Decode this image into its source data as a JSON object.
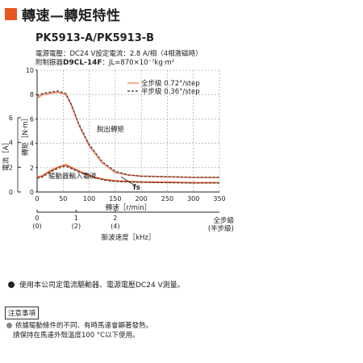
{
  "title": "轉速—轉矩特性",
  "colors": {
    "accent": "#e8561e",
    "curve_full": "#f08060",
    "curve_half": "#333333",
    "current": "#e8561e"
  },
  "model": "PK5913-A/PK5913-B",
  "spec_line1": "電源電壓：DC24 V設定電流：2.8 A/相（4相激磁時）",
  "spec_line2_prefix": "附制振器",
  "spec_line2_bold": "D9CL-14F",
  "spec_line2_suffix": "：JL=870×10⁻⁷kg·m²",
  "chart_data": {
    "type": "line",
    "x_label": "轉速［r/min］",
    "y_label_torque": "轉矩［N·m］",
    "y_label_current": "電流［A］",
    "x_ticks": [
      0,
      50,
      100,
      150,
      200,
      250,
      300,
      350
    ],
    "x_range": [
      0,
      350
    ],
    "y_torque_ticks": [
      0,
      2,
      4,
      6,
      8,
      10
    ],
    "y_torque_range": [
      0,
      10
    ],
    "y_current_ticks": [
      0,
      2,
      4,
      6
    ],
    "y_current_range": [
      0,
      6
    ],
    "pulse_axis_label": "脈波速度［kHz］",
    "pulse_ticks_full": [
      "1",
      "2"
    ],
    "pulse_ticks_half": [
      "(2)",
      "(4)"
    ],
    "pulse_tick_zero_full": "0",
    "pulse_tick_zero_half": "(0)",
    "pulse_tick_one_speed": 75,
    "pulse_tick_two_speed": 150,
    "mode_full": "全步級",
    "mode_half": "(半步級)",
    "legend": [
      {
        "label": "全步級 0.72°/step",
        "style": "solid"
      },
      {
        "label": "半步級 0.36°/step",
        "style": "dashed"
      }
    ],
    "annotations": {
      "pullout": "脫出轉矩",
      "current": "驅動器輸入電流",
      "fs": "fs"
    },
    "series": [
      {
        "name": "全步級 0.72°/step",
        "kind": "torque",
        "style": "solid",
        "x": [
          0,
          10,
          25,
          40,
          55,
          65,
          80,
          100,
          125,
          150,
          175,
          200,
          250,
          300,
          350
        ],
        "y": [
          7.7,
          8.0,
          8.1,
          8.2,
          8.0,
          7.2,
          5.5,
          3.8,
          2.4,
          1.6,
          1.4,
          1.3,
          1.25,
          1.2,
          1.2
        ]
      },
      {
        "name": "半步級 0.36°/step",
        "kind": "torque",
        "style": "dashed",
        "x": [
          0,
          10,
          25,
          40,
          55,
          65,
          80,
          100,
          125,
          150,
          175,
          200,
          250,
          300,
          350
        ],
        "y": [
          7.9,
          8.1,
          8.2,
          8.3,
          8.1,
          7.3,
          5.6,
          3.9,
          2.5,
          1.7,
          1.4,
          1.3,
          1.25,
          1.2,
          1.2
        ]
      },
      {
        "name": "驅動器輸入電流 全步級",
        "kind": "current",
        "style": "solid",
        "x": [
          0,
          10,
          25,
          40,
          55,
          70,
          90,
          110,
          130,
          150,
          175,
          200,
          250,
          300,
          350
        ],
        "y": [
          1.2,
          1.3,
          1.7,
          2.0,
          2.2,
          1.9,
          1.5,
          1.2,
          1.0,
          0.9,
          0.85,
          0.8,
          0.78,
          0.75,
          0.75
        ]
      },
      {
        "name": "驅動器輸入電流 半步級",
        "kind": "current",
        "style": "dashed",
        "x": [
          0,
          10,
          25,
          40,
          55,
          70,
          90,
          110,
          130,
          150,
          175,
          200,
          250,
          300,
          350
        ],
        "y": [
          1.1,
          1.2,
          1.6,
          1.9,
          2.1,
          1.8,
          1.45,
          1.15,
          0.95,
          0.85,
          0.8,
          0.78,
          0.75,
          0.72,
          0.72
        ]
      }
    ]
  },
  "note": "使用本公司定電流驅動器、電源電壓DC24 V測量。",
  "caution_title": "注意事項",
  "caution_line1": "依據驅動條件的不同、有時馬達會顯著發熱。",
  "caution_line2": "請保持在馬達外殼溫度100 °C以下使用。"
}
